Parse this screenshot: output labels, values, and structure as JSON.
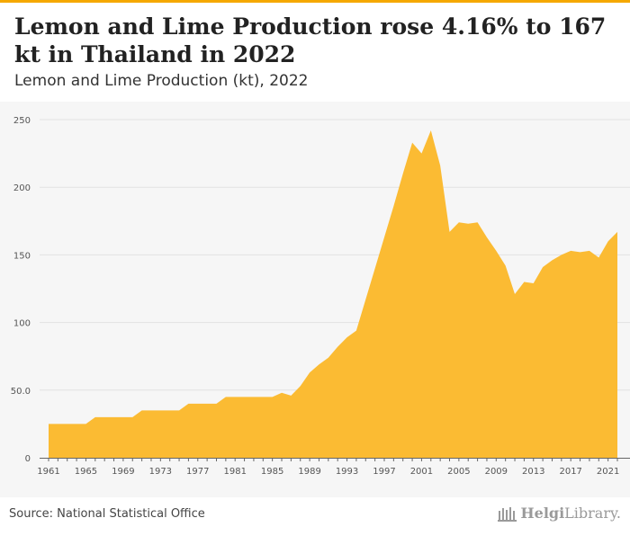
{
  "header": {
    "title": "Lemon and Lime Production rose 4.16% to 167 kt in Thailand in 2022",
    "subtitle": "Lemon and Lime Production (kt), 2022"
  },
  "footer": {
    "source": "Source: National Statistical Office",
    "logo_bold": "Helgi",
    "logo_rest": "Library."
  },
  "colors": {
    "accent": "#f5a800",
    "area": "#fbbb33",
    "panel": "#f6f6f6"
  },
  "chart_data": {
    "type": "area",
    "title": "Lemon and Lime Production (kt), 2022",
    "xlabel": "",
    "ylabel": "",
    "ylim": [
      0,
      250
    ],
    "yticks": [
      0,
      50,
      100,
      150,
      200,
      250
    ],
    "ytick_labels": [
      "0",
      "50.0",
      "100",
      "150",
      "200",
      "250"
    ],
    "xticks": [
      1961,
      1965,
      1969,
      1973,
      1977,
      1981,
      1985,
      1989,
      1993,
      1997,
      2001,
      2005,
      2009,
      2013,
      2017,
      2021
    ],
    "grid": true,
    "legend": "none",
    "x": [
      1961,
      1962,
      1963,
      1964,
      1965,
      1966,
      1967,
      1968,
      1969,
      1970,
      1971,
      1972,
      1973,
      1974,
      1975,
      1976,
      1977,
      1978,
      1979,
      1980,
      1981,
      1982,
      1983,
      1984,
      1985,
      1986,
      1987,
      1988,
      1989,
      1990,
      1991,
      1992,
      1993,
      1994,
      1995,
      1996,
      1997,
      1998,
      1999,
      2000,
      2001,
      2002,
      2003,
      2004,
      2005,
      2006,
      2007,
      2008,
      2009,
      2010,
      2011,
      2012,
      2013,
      2014,
      2015,
      2016,
      2017,
      2018,
      2019,
      2020,
      2021,
      2022
    ],
    "series": [
      {
        "values": [
          25,
          25,
          25,
          25,
          25,
          30,
          30,
          30,
          30,
          30,
          35,
          35,
          35,
          35,
          35,
          40,
          40,
          40,
          40,
          45,
          45,
          45,
          45,
          45,
          45,
          48,
          46,
          53,
          63,
          69,
          74,
          82,
          89,
          94,
          117,
          140,
          163,
          186,
          210,
          233,
          225,
          242,
          216,
          167,
          174,
          173,
          174,
          163,
          153,
          142,
          121,
          130,
          129,
          141,
          146,
          150,
          153,
          152,
          153,
          148,
          160,
          167
        ]
      }
    ]
  }
}
